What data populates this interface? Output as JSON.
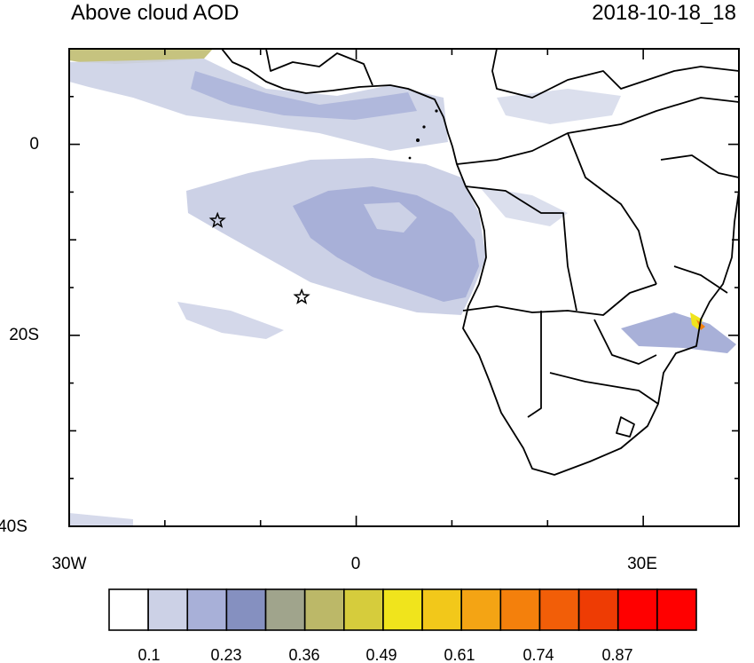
{
  "title_left": "Above cloud AOD",
  "title_right": "2018-10-18_18",
  "map": {
    "lon_range": [
      -30,
      40
    ],
    "lat_range": [
      -40,
      10
    ],
    "x_ticks": [
      {
        "label": "30W"
      },
      {
        "label": "0"
      },
      {
        "label": "30E"
      }
    ],
    "y_ticks": [
      {
        "label": "0"
      },
      {
        "label": "20S"
      },
      {
        "label": "40S"
      }
    ],
    "markers": [
      {
        "name": "star",
        "lon": -14.5,
        "lat": -8
      },
      {
        "name": "star",
        "lon": -5.7,
        "lat": -16
      }
    ]
  },
  "colorbar": {
    "colors": [
      "#ffffff",
      "#ccd1e6",
      "#a8b0d8",
      "#8590c0",
      "#a0a48c",
      "#bcb868",
      "#d6cc3c",
      "#f0e41c",
      "#f2c81a",
      "#f4a414",
      "#f4800c",
      "#f25e08",
      "#ee3c04",
      "#ff0000",
      "#ff0000"
    ],
    "labels": [
      "0.1",
      "0.23",
      "0.36",
      "0.49",
      "0.61",
      "0.74",
      "0.87"
    ]
  }
}
